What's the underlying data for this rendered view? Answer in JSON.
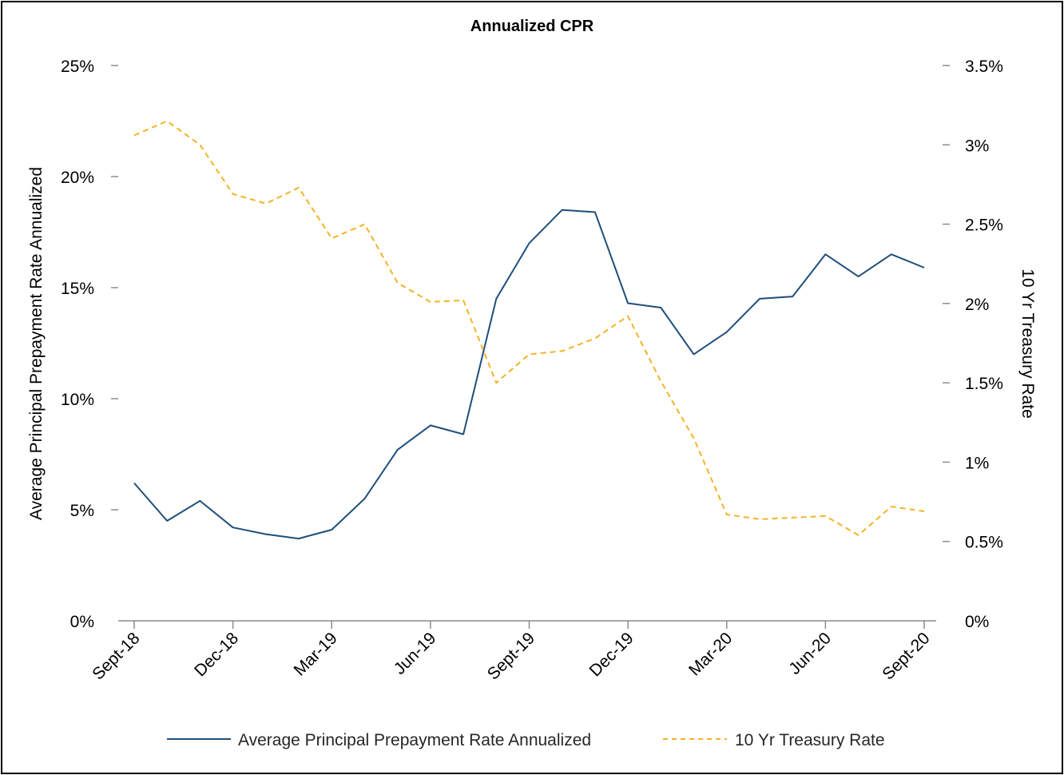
{
  "chart_data": {
    "type": "line",
    "title": "Annualized CPR",
    "ylabel": "Average Principal Prepayment Rate Annualized",
    "y2label": "10 Yr Treasury Rate",
    "x": [
      "Sept-18",
      "Oct-18",
      "Nov-18",
      "Dec-18",
      "Jan-19",
      "Feb-19",
      "Mar-19",
      "Apr-19",
      "May-19",
      "Jun-19",
      "Jul-19",
      "Aug-19",
      "Sept-19",
      "Oct-19",
      "Nov-19",
      "Dec-19",
      "Jan-20",
      "Feb-20",
      "Mar-20",
      "Apr-20",
      "May-20",
      "Jun-20",
      "Jul-20",
      "Aug-20",
      "Sept-20"
    ],
    "x_tick_labels": [
      "Sept-18",
      "",
      "",
      "Dec-18",
      "",
      "",
      "Mar-19",
      "",
      "",
      "Jun-19",
      "",
      "",
      "Sept-19",
      "",
      "",
      "Dec-19",
      "",
      "",
      "Mar-20",
      "",
      "",
      "Jun-20",
      "",
      "",
      "Sept-20"
    ],
    "ylim": [
      0,
      25
    ],
    "y_ticks": [
      0,
      5,
      10,
      15,
      20,
      25
    ],
    "y_tick_labels": [
      "0%",
      "5%",
      "10%",
      "15%",
      "20%",
      "25%"
    ],
    "y2lim": [
      0,
      3.5
    ],
    "y2_ticks": [
      0,
      0.5,
      1,
      1.5,
      2,
      2.5,
      3,
      3.5
    ],
    "y2_tick_labels": [
      "0%",
      "0.5%",
      "1%",
      "1.5%",
      "2%",
      "2.5%",
      "3%",
      "3.5%"
    ],
    "series": [
      {
        "name": "Average Principal Prepayment Rate Annualized",
        "axis": "left",
        "color": "#1f4e79",
        "dash": "solid",
        "values": [
          6.2,
          4.5,
          5.4,
          4.2,
          3.9,
          3.7,
          4.1,
          5.5,
          7.7,
          8.8,
          8.4,
          14.5,
          17.0,
          18.5,
          18.4,
          14.3,
          14.1,
          12.0,
          13.0,
          14.5,
          14.6,
          16.5,
          15.5,
          16.5,
          15.9
        ]
      },
      {
        "name": "10 Yr Treasury Rate",
        "axis": "right",
        "color": "#f4b324",
        "dash": "dashed",
        "values": [
          3.06,
          3.15,
          3.0,
          2.69,
          2.63,
          2.73,
          2.41,
          2.5,
          2.13,
          2.01,
          2.02,
          1.5,
          1.68,
          1.7,
          1.78,
          1.92,
          1.51,
          1.15,
          0.67,
          0.64,
          0.65,
          0.66,
          0.54,
          0.72,
          0.69
        ]
      }
    ],
    "legend_position": "bottom",
    "grid": false
  }
}
